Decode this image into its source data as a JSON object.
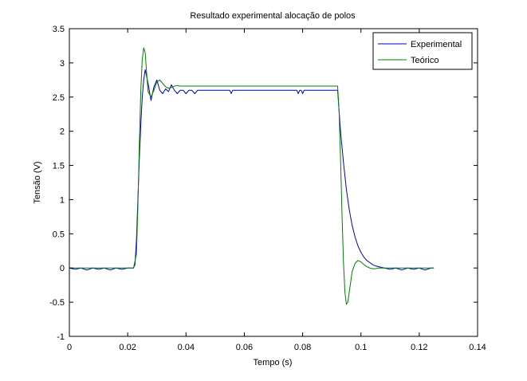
{
  "chart_data": {
    "type": "line",
    "title": "Resultado experimental alocação de polos",
    "xlabel": "Tempo (s)",
    "ylabel": "Tensão (V)",
    "xlim": [
      0,
      0.14
    ],
    "ylim": [
      -1,
      3.5
    ],
    "xticks": [
      0,
      0.02,
      0.04,
      0.06,
      0.08,
      0.1,
      0.12,
      0.14
    ],
    "xtick_labels": [
      "0",
      "0.02",
      "0.04",
      "0.06",
      "0.08",
      "0.1",
      "0.12",
      "0.14"
    ],
    "yticks": [
      -1,
      -0.5,
      0,
      0.5,
      1,
      1.5,
      2,
      2.5,
      3,
      3.5
    ],
    "ytick_labels": [
      "-1",
      "-0.5",
      "0",
      "0.5",
      "1",
      "1.5",
      "2",
      "2.5",
      "3",
      "3.5"
    ],
    "grid": false,
    "legend_position": "top-right",
    "series": [
      {
        "name": "Experimental",
        "color": "#0000bf",
        "x": [
          0,
          0.002,
          0.004,
          0.006,
          0.008,
          0.01,
          0.012,
          0.014,
          0.016,
          0.018,
          0.02,
          0.022,
          0.0225,
          0.023,
          0.0235,
          0.024,
          0.0245,
          0.025,
          0.0255,
          0.026,
          0.027,
          0.028,
          0.029,
          0.03,
          0.031,
          0.032,
          0.033,
          0.034,
          0.035,
          0.036,
          0.037,
          0.038,
          0.039,
          0.04,
          0.041,
          0.042,
          0.043,
          0.044,
          0.046,
          0.05,
          0.055,
          0.0555,
          0.056,
          0.06,
          0.065,
          0.07,
          0.075,
          0.078,
          0.0785,
          0.079,
          0.0795,
          0.08,
          0.0805,
          0.081,
          0.085,
          0.09,
          0.092,
          0.0925,
          0.093,
          0.094,
          0.095,
          0.096,
          0.097,
          0.098,
          0.099,
          0.1,
          0.101,
          0.102,
          0.103,
          0.104,
          0.105,
          0.106,
          0.107,
          0.108,
          0.11,
          0.112,
          0.114,
          0.116,
          0.118,
          0.12,
          0.122,
          0.124,
          0.125
        ],
        "y": [
          0,
          -0.02,
          0,
          -0.03,
          0,
          -0.02,
          0,
          -0.03,
          0,
          -0.02,
          0,
          0,
          0.05,
          0.4,
          1.0,
          1.6,
          2.1,
          2.5,
          2.75,
          2.9,
          2.7,
          2.45,
          2.65,
          2.75,
          2.6,
          2.55,
          2.62,
          2.58,
          2.68,
          2.6,
          2.55,
          2.6,
          2.6,
          2.55,
          2.6,
          2.6,
          2.55,
          2.6,
          2.6,
          2.6,
          2.6,
          2.55,
          2.6,
          2.6,
          2.6,
          2.6,
          2.6,
          2.6,
          2.55,
          2.6,
          2.6,
          2.55,
          2.6,
          2.6,
          2.6,
          2.6,
          2.6,
          2.3,
          2.0,
          1.55,
          1.15,
          0.85,
          0.62,
          0.45,
          0.32,
          0.23,
          0.16,
          0.11,
          0.08,
          0.05,
          0.03,
          0.02,
          0.01,
          0,
          -0.02,
          0,
          -0.03,
          0,
          -0.02,
          0,
          -0.03,
          0,
          0
        ]
      },
      {
        "name": "Teórico",
        "color": "#007f00",
        "x": [
          0,
          0.02,
          0.022,
          0.023,
          0.0235,
          0.024,
          0.0245,
          0.025,
          0.0255,
          0.026,
          0.0265,
          0.027,
          0.028,
          0.029,
          0.03,
          0.031,
          0.032,
          0.033,
          0.034,
          0.035,
          0.036,
          0.037,
          0.038,
          0.04,
          0.045,
          0.05,
          0.06,
          0.07,
          0.08,
          0.09,
          0.092,
          0.0925,
          0.093,
          0.0935,
          0.094,
          0.0945,
          0.095,
          0.0955,
          0.096,
          0.0965,
          0.097,
          0.098,
          0.099,
          0.1,
          0.101,
          0.102,
          0.103,
          0.104,
          0.105,
          0.106,
          0.107,
          0.108,
          0.11,
          0.115,
          0.12,
          0.125
        ],
        "y": [
          0,
          0,
          0,
          0.2,
          0.9,
          1.8,
          2.6,
          3.05,
          3.22,
          3.15,
          2.85,
          2.58,
          2.5,
          2.6,
          2.72,
          2.75,
          2.7,
          2.65,
          2.63,
          2.64,
          2.66,
          2.67,
          2.66,
          2.66,
          2.66,
          2.66,
          2.66,
          2.66,
          2.66,
          2.66,
          2.66,
          2.3,
          1.6,
          0.8,
          0.1,
          -0.35,
          -0.53,
          -0.5,
          -0.35,
          -0.2,
          -0.05,
          0.07,
          0.11,
          0.09,
          0.05,
          0.02,
          0,
          -0.01,
          -0.01,
          0,
          0,
          0,
          0,
          0,
          0,
          0
        ]
      }
    ]
  }
}
